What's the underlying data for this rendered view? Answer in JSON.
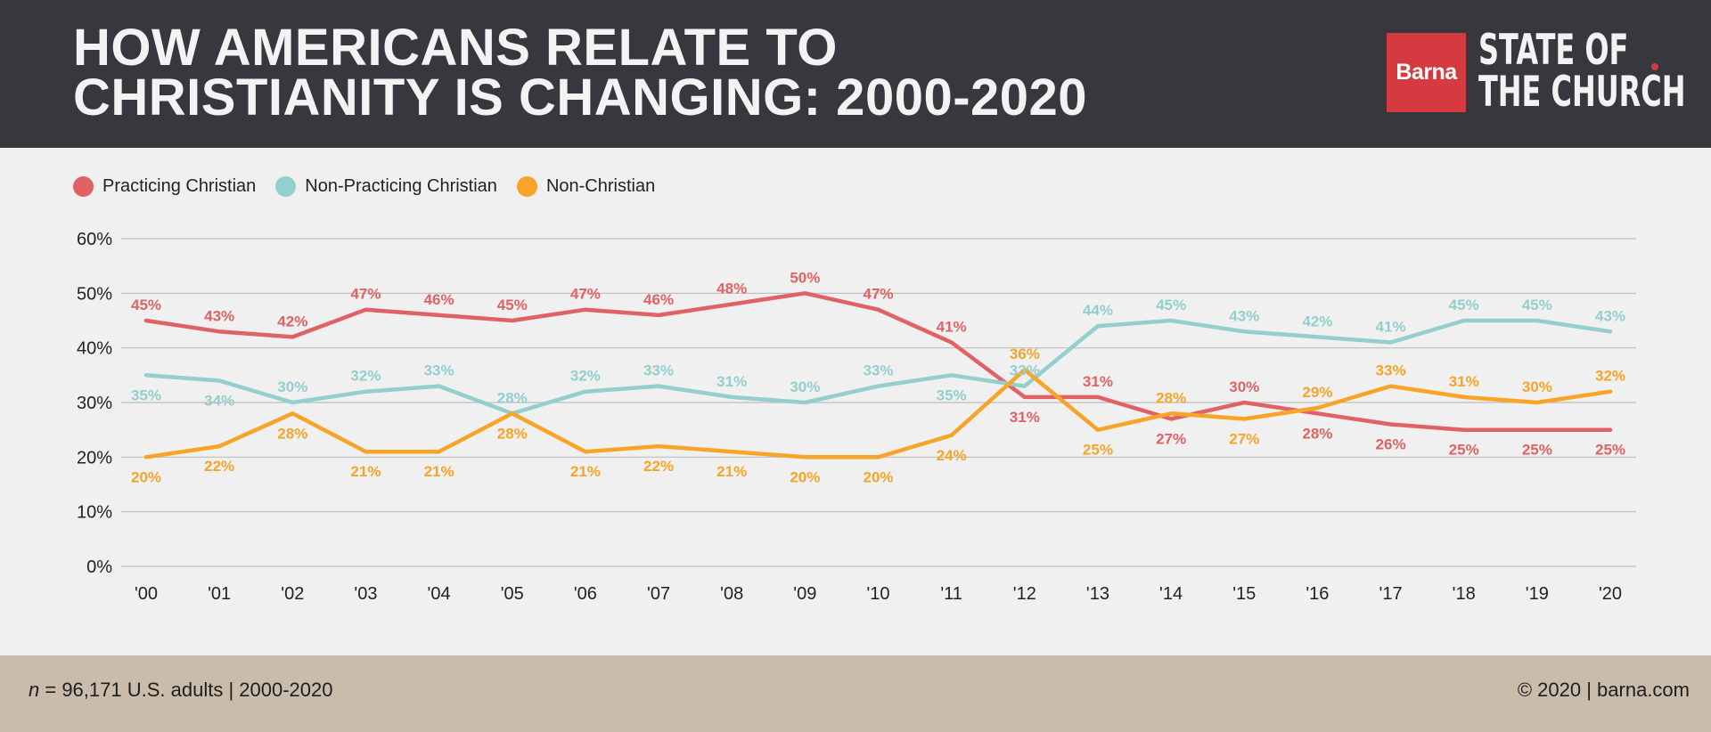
{
  "header": {
    "title_line1": "HOW AMERICANS RELATE TO",
    "title_line2": "CHRISTIANITY IS CHANGING: 2000-2020",
    "logo_text": "Barna",
    "brand_line1": "STATE OF",
    "brand_line2": "THE CHURCH"
  },
  "colors": {
    "practicing": "#e06264",
    "non_practicing": "#93cfcd",
    "non_christian": "#f7a428",
    "header_bg": "#37383d",
    "footer_bg": "#c9bcab",
    "logo_red": "#d43a3f"
  },
  "footer": {
    "sample_n": "n",
    "sample_rest": " = 96,171 U.S. adults | 2000-2020",
    "copyright": "© 2020 | barna.com"
  },
  "chart_data": {
    "type": "line",
    "title": "HOW AMERICANS RELATE TO CHRISTIANITY IS CHANGING: 2000-2020",
    "xlabel": "",
    "ylabel": "",
    "ylim": [
      0,
      60
    ],
    "yticks": [
      "0%",
      "10%",
      "20%",
      "30%",
      "40%",
      "50%",
      "60%"
    ],
    "grid": true,
    "legend_position": "top-left",
    "categories": [
      "'00",
      "'01",
      "'02",
      "'03",
      "'04",
      "'05",
      "'06",
      "'07",
      "'08",
      "'09",
      "'10",
      "'11",
      "'12",
      "'13",
      "'14",
      "'15",
      "'16",
      "'17",
      "'18",
      "'19",
      "'20"
    ],
    "series": [
      {
        "name": "Practicing Christian",
        "color": "#e06264",
        "values": [
          45,
          43,
          42,
          47,
          46,
          45,
          47,
          46,
          48,
          50,
          47,
          41,
          31,
          31,
          27,
          30,
          28,
          26,
          25,
          25,
          25
        ]
      },
      {
        "name": "Non-Practicing Christian",
        "color": "#93cfcd",
        "values": [
          35,
          34,
          30,
          32,
          33,
          28,
          32,
          33,
          31,
          30,
          33,
          35,
          33,
          44,
          45,
          43,
          42,
          41,
          45,
          45,
          43
        ]
      },
      {
        "name": "Non-Christian",
        "color": "#f7a428",
        "values": [
          20,
          22,
          28,
          21,
          21,
          28,
          21,
          22,
          21,
          20,
          20,
          24,
          36,
          25,
          28,
          27,
          29,
          33,
          31,
          30,
          32
        ]
      }
    ]
  }
}
